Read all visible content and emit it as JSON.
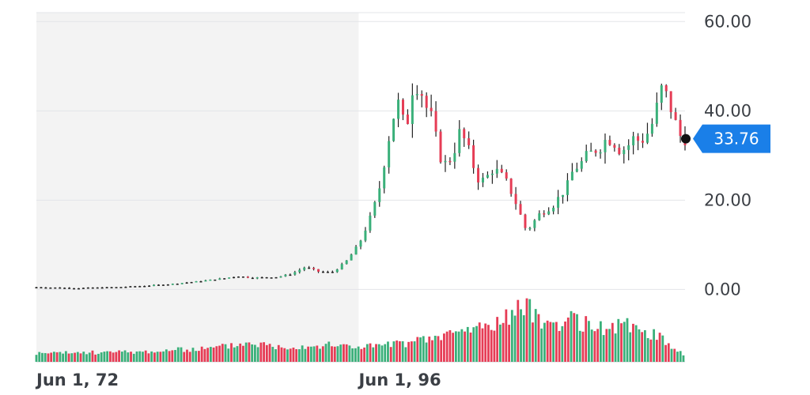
{
  "chart_data": {
    "type": "candlestick",
    "title": "",
    "xlabel": "",
    "ylabel": "",
    "ylim": [
      -1,
      62
    ],
    "y_ticks": [
      "60.00",
      "40.00",
      "20.00",
      "0.00"
    ],
    "y_tick_values": [
      60,
      40,
      20,
      0
    ],
    "x_ticks": [
      "Jun 1, 72",
      "Jun 1, 96"
    ],
    "x_tick_years": [
      1972,
      1996
    ],
    "x_range_years": [
      1972,
      2020.3
    ],
    "shaded_period_years": [
      1972,
      1996
    ],
    "grid": true,
    "current_price": {
      "label": "33.76",
      "value": 33.76
    },
    "colors": {
      "up": "#3ab07a",
      "down": "#e63c55",
      "neutral": "#222222",
      "price_tag": "#1a7fe8",
      "grid": "#e3e5e8",
      "shade": "#f3f3f3"
    },
    "price_series": {
      "name": "",
      "years": [
        1972,
        1975,
        1978,
        1980,
        1982,
        1984,
        1986,
        1987,
        1988,
        1990,
        1991,
        1992,
        1993,
        1994,
        1995,
        1996,
        1997,
        1997.5,
        1998,
        1998.5,
        1999,
        1999.5,
        2000,
        2000.5,
        2001,
        2001.5,
        2002,
        2002.5,
        2003,
        2003.5,
        2004,
        2004.5,
        2005,
        2005.5,
        2006,
        2006.5,
        2007,
        2007.5,
        2008,
        2008.5,
        2009,
        2009.5,
        2010,
        2010.5,
        2011,
        2011.5,
        2012,
        2012.5,
        2013,
        2013.5,
        2014,
        2014.5,
        2015,
        2015.5,
        2016,
        2016.5,
        2017,
        2017.5,
        2018,
        2018.5,
        2019,
        2019.5,
        2020,
        2020.3
      ],
      "values": [
        0.5,
        0.3,
        0.5,
        0.8,
        1.2,
        1.8,
        2.5,
        3.0,
        2.6,
        2.8,
        3.5,
        5.0,
        4.0,
        3.8,
        6.0,
        10.0,
        17.0,
        22.0,
        30.0,
        38.0,
        42.0,
        35.0,
        45.0,
        46.0,
        41.0,
        38.0,
        30.0,
        28.0,
        30.0,
        35.0,
        33.0,
        28.0,
        24.0,
        25.0,
        27.0,
        26.0,
        24.0,
        21.0,
        17.0,
        13.0,
        15.0,
        17.0,
        18.0,
        19.0,
        21.0,
        23.0,
        27.0,
        28.0,
        30.0,
        31.0,
        32.0,
        34.0,
        33.0,
        31.0,
        32.0,
        34.0,
        33.0,
        35.0,
        38.0,
        45.0,
        43.0,
        38.0,
        34.0,
        33.76
      ]
    },
    "volume_series": {
      "name": "",
      "years": [
        1972,
        1980,
        1985,
        1988,
        1990,
        1994,
        1996,
        1998,
        2000,
        2002,
        2004,
        2006,
        2007,
        2008,
        2009,
        2010,
        2012,
        2014,
        2016,
        2018,
        2020.3
      ],
      "values": [
        1.0,
        1.2,
        1.6,
        2.3,
        1.8,
        2.0,
        1.8,
        2.0,
        2.3,
        3.0,
        3.8,
        4.5,
        5.2,
        6.5,
        6.0,
        4.5,
        5.0,
        4.0,
        4.3,
        3.3,
        0.8
      ]
    }
  }
}
